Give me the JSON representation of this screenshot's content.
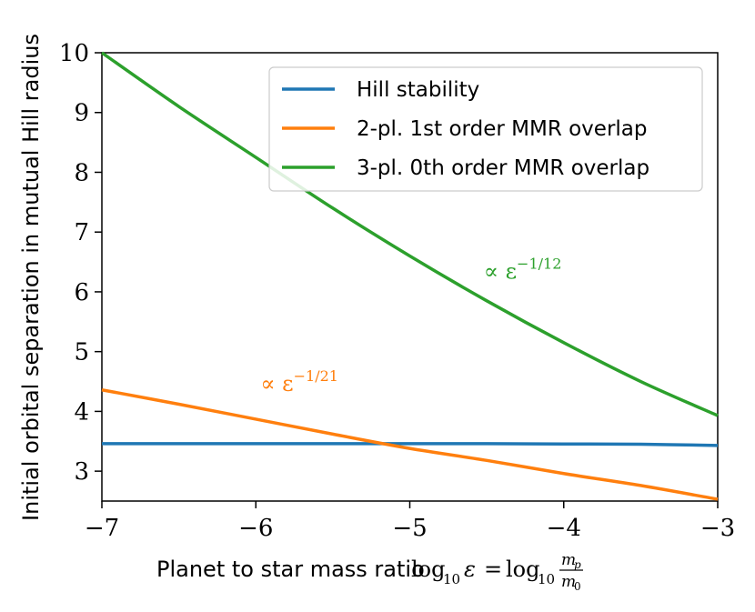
{
  "chart_data": {
    "type": "line",
    "xlabel": "Planet to star mass ratio",
    "xlabel_math": {
      "log": "log",
      "sub": "10",
      "eps": "ε",
      "eq": "=",
      "frac_num": "m",
      "frac_num_sub": "p",
      "frac_den": "m",
      "frac_den_sub": "0"
    },
    "ylabel": "Initial orbital separation in mutual Hill radius",
    "xlim": [
      -7,
      -3
    ],
    "ylim": [
      2.5,
      10
    ],
    "xticks": [
      -7,
      -6,
      -5,
      -4,
      -3
    ],
    "xtick_labels": [
      "−7",
      "−6",
      "−5",
      "−4",
      "−3"
    ],
    "yticks": [
      3,
      4,
      5,
      6,
      7,
      8,
      9,
      10
    ],
    "ytick_labels": [
      "3",
      "4",
      "5",
      "6",
      "7",
      "8",
      "9",
      "10"
    ],
    "legend_position": "upper-right",
    "series": [
      {
        "name": "Hill stability",
        "color": "#1f77b4",
        "x": [
          -7,
          -6.5,
          -6,
          -5.5,
          -5,
          -4.5,
          -4,
          -3.5,
          -3
        ],
        "y": [
          3.46,
          3.46,
          3.46,
          3.46,
          3.46,
          3.46,
          3.455,
          3.45,
          3.43
        ]
      },
      {
        "name": "2-pl. 1st order MMR overlap",
        "color": "#ff7f0e",
        "x": [
          -7,
          -6.5,
          -6,
          -5.5,
          -5,
          -4.5,
          -4,
          -3.5,
          -3
        ],
        "y": [
          4.36,
          4.12,
          3.87,
          3.62,
          3.38,
          3.18,
          2.96,
          2.76,
          2.53
        ]
      },
      {
        "name": "3-pl. 0th order MMR overlap",
        "color": "#2ca02c",
        "x": [
          -7,
          -6.5,
          -6,
          -5.5,
          -5,
          -4.5,
          -4,
          -3.5,
          -3
        ],
        "y": [
          10.0,
          9.1,
          8.25,
          7.4,
          6.6,
          5.85,
          5.15,
          4.5,
          3.93
        ]
      }
    ],
    "annotations": [
      {
        "prefix": "∝ ε",
        "exponent": "−1/12",
        "color": "#2ca02c",
        "x": -4.52,
        "y": 6.22
      },
      {
        "prefix": "∝ ε",
        "exponent": "−1/21",
        "color": "#ff7f0e",
        "x": -5.97,
        "y": 4.34
      }
    ]
  }
}
